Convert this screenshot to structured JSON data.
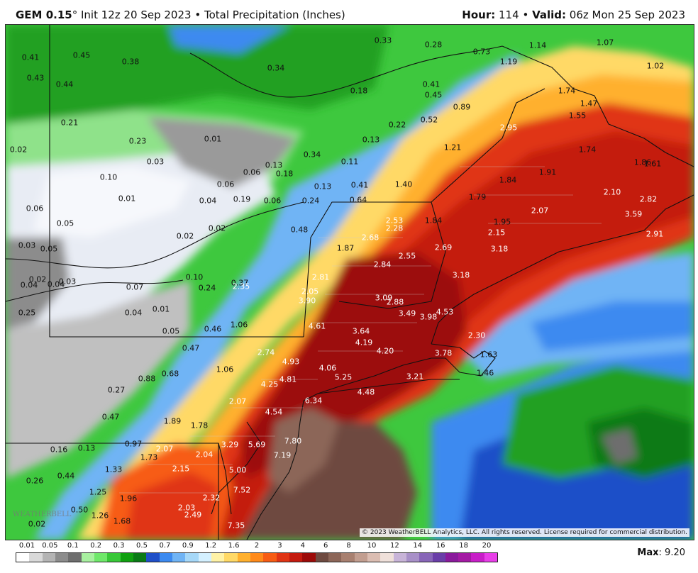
{
  "header": {
    "model": "GEM 0.15",
    "degree": "°",
    "init": "Init 12z 20 Sep 2023",
    "separator": "•",
    "product": "Total Precipitation (Inches)",
    "hour_label": "Hour:",
    "hour_value": "114",
    "valid_label": "Valid:",
    "valid_value": "06z Mon 25 Sep 2023"
  },
  "map": {
    "copyright": "© 2023 WeatherBELL Analytics, LLC. All rights reserved. License required for commercial distribution.",
    "watermark": "WEATHERBELL",
    "labels": [
      {
        "text": "0.41"
      },
      {
        "text": "0.45"
      },
      {
        "text": "0.38"
      },
      {
        "text": "0.34"
      },
      {
        "text": "0.33"
      },
      {
        "text": "0.28"
      },
      {
        "text": "0.73"
      },
      {
        "text": "1.14"
      },
      {
        "text": "1.07"
      },
      {
        "text": "1.19"
      },
      {
        "text": "1.02"
      },
      {
        "text": "0.43"
      },
      {
        "text": "0.44"
      },
      {
        "text": "0.18"
      },
      {
        "text": "0.41"
      },
      {
        "text": "0.45"
      },
      {
        "text": "0.89"
      },
      {
        "text": "1.74"
      },
      {
        "text": "1.47"
      },
      {
        "text": "1.55"
      },
      {
        "text": "0.21"
      },
      {
        "text": "0.23"
      },
      {
        "text": "0.01"
      },
      {
        "text": "0.22"
      },
      {
        "text": "0.52"
      },
      {
        "text": "2.95"
      },
      {
        "text": "0.13"
      },
      {
        "text": "1.21"
      },
      {
        "text": "1.74"
      },
      {
        "text": "0.02"
      },
      {
        "text": "0.03"
      },
      {
        "text": "0.34"
      },
      {
        "text": "0.11"
      },
      {
        "text": "0.10"
      },
      {
        "text": "0.13"
      },
      {
        "text": "0.06"
      },
      {
        "text": "0.18"
      },
      {
        "text": "1.91"
      },
      {
        "text": "1.86"
      },
      {
        "text": "1.61"
      },
      {
        "text": "0.06"
      },
      {
        "text": "0.13"
      },
      {
        "text": "0.41"
      },
      {
        "text": "1.40"
      },
      {
        "text": "1.84"
      },
      {
        "text": "2.10"
      },
      {
        "text": "0.01"
      },
      {
        "text": "0.04"
      },
      {
        "text": "0.19"
      },
      {
        "text": "0.06"
      },
      {
        "text": "0.24"
      },
      {
        "text": "0.64"
      },
      {
        "text": "1.79"
      },
      {
        "text": "2.82"
      },
      {
        "text": "0.06"
      },
      {
        "text": "0.05"
      },
      {
        "text": "2.07"
      },
      {
        "text": "3.59"
      },
      {
        "text": "2.53"
      },
      {
        "text": "1.84"
      },
      {
        "text": "1.95"
      },
      {
        "text": "0.48"
      },
      {
        "text": "2.28"
      },
      {
        "text": "0.02"
      },
      {
        "text": "0.02"
      },
      {
        "text": "2.15"
      },
      {
        "text": "2.91"
      },
      {
        "text": "0.03"
      },
      {
        "text": "0.05"
      },
      {
        "text": "2.68"
      },
      {
        "text": "1.87"
      },
      {
        "text": "2.69"
      },
      {
        "text": "3.18"
      },
      {
        "text": "2.55"
      },
      {
        "text": "2.84"
      },
      {
        "text": "3.18"
      },
      {
        "text": "0.02"
      },
      {
        "text": "0.04"
      },
      {
        "text": "0.04"
      },
      {
        "text": "0.03"
      },
      {
        "text": "0.07"
      },
      {
        "text": "0.10"
      },
      {
        "text": "0.24"
      },
      {
        "text": "0.37"
      },
      {
        "text": "2.35"
      },
      {
        "text": "2.81"
      },
      {
        "text": "2.05"
      },
      {
        "text": "3.09"
      },
      {
        "text": "2.88"
      },
      {
        "text": "3.90"
      },
      {
        "text": "0.25"
      },
      {
        "text": "0.04"
      },
      {
        "text": "0.01"
      },
      {
        "text": "3.49"
      },
      {
        "text": "3.98"
      },
      {
        "text": "4.53"
      },
      {
        "text": "0.46"
      },
      {
        "text": "1.06"
      },
      {
        "text": "4.61"
      },
      {
        "text": "0.05"
      },
      {
        "text": "3.64"
      },
      {
        "text": "2.30"
      },
      {
        "text": "4.19"
      },
      {
        "text": "0.47"
      },
      {
        "text": "2.74"
      },
      {
        "text": "4.20"
      },
      {
        "text": "3.78"
      },
      {
        "text": "1.63"
      },
      {
        "text": "4.93"
      },
      {
        "text": "0.68"
      },
      {
        "text": "1.06"
      },
      {
        "text": "4.06"
      },
      {
        "text": "0.88"
      },
      {
        "text": "4.81"
      },
      {
        "text": "5.25"
      },
      {
        "text": "3.21"
      },
      {
        "text": "1.46"
      },
      {
        "text": "4.25"
      },
      {
        "text": "0.27"
      },
      {
        "text": "4.48"
      },
      {
        "text": "2.07"
      },
      {
        "text": "6.34"
      },
      {
        "text": "4.54"
      },
      {
        "text": "0.47"
      },
      {
        "text": "1.89"
      },
      {
        "text": "1.78"
      },
      {
        "text": "5.69"
      },
      {
        "text": "3.29"
      },
      {
        "text": "7.80"
      },
      {
        "text": "0.97"
      },
      {
        "text": "0.16"
      },
      {
        "text": "0.13"
      },
      {
        "text": "2.07"
      },
      {
        "text": "1.73"
      },
      {
        "text": "2.04"
      },
      {
        "text": "7.19"
      },
      {
        "text": "1.33"
      },
      {
        "text": "2.15"
      },
      {
        "text": "5.00"
      },
      {
        "text": "0.44"
      },
      {
        "text": "0.26"
      },
      {
        "text": "7.52"
      },
      {
        "text": "1.25"
      },
      {
        "text": "1.96"
      },
      {
        "text": "2.32"
      },
      {
        "text": "2.03"
      },
      {
        "text": "0.50"
      },
      {
        "text": "1.26"
      },
      {
        "text": "2.49"
      },
      {
        "text": "1.68"
      },
      {
        "text": "0.02"
      },
      {
        "text": "7.35"
      }
    ]
  },
  "legend": {
    "ticks": [
      "0.01",
      "0.05",
      "0.1",
      "0.2",
      "0.3",
      "0.5",
      "0.7",
      "0.9",
      "1.2",
      "1.6",
      "2",
      "3",
      "4",
      "6",
      "8",
      "10",
      "12",
      "14",
      "16",
      "18",
      "20"
    ],
    "colors": [
      "#ffffff",
      "#d9d9d9",
      "#b4b4b4",
      "#8c8c8c",
      "#6e6e6e",
      "#a8f0a0",
      "#6fe86a",
      "#38c838",
      "#10a010",
      "#0a7a16",
      "#1f4fc8",
      "#3c8af0",
      "#70b4f5",
      "#a6d8f8",
      "#d4f0ff",
      "#fff2a6",
      "#ffd966",
      "#ffb02e",
      "#ff8a1a",
      "#f75c14",
      "#e03414",
      "#c41a0e",
      "#9c0a08",
      "#6e4a40",
      "#8c6658",
      "#a88070",
      "#c29e90",
      "#dbbdb2",
      "#efe0da",
      "#c8b4d8",
      "#a890c8",
      "#8866b8",
      "#6a3ea8",
      "#8a1a9c",
      "#a41aa4",
      "#c81ec8",
      "#e83ee8"
    ],
    "max_label": "Max",
    "max_value": "9.20"
  }
}
